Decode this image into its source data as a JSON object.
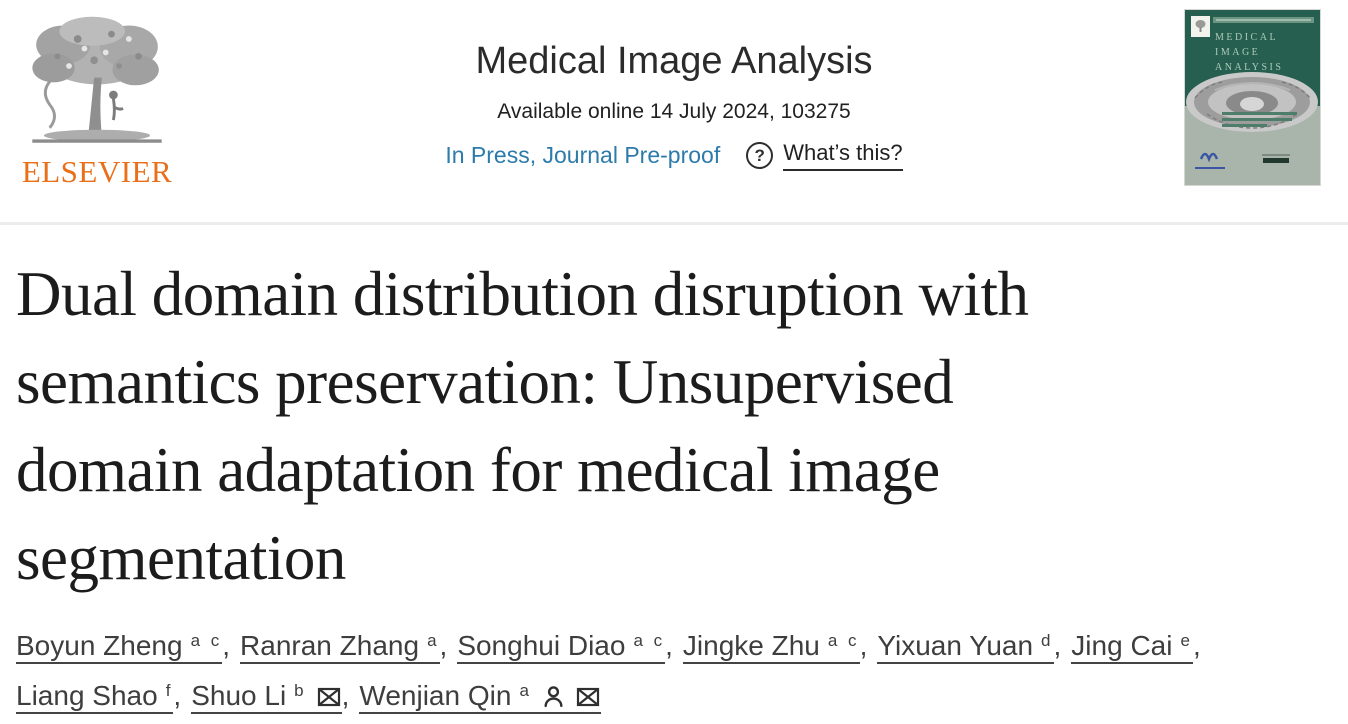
{
  "header": {
    "publisher_wordmark": "ELSEVIER",
    "journal_title": "Medical Image Analysis",
    "availability": "Available online 14 July 2024, 103275",
    "status_link": "In Press, Journal Pre-proof",
    "question_icon": "?",
    "whats_this_label": "What’s this?",
    "accent_orange": "#E8701A",
    "link_teal": "#2C7BAB"
  },
  "cover": {
    "journal_lines": [
      "MEDICAL",
      "IMAGE",
      "ANALYSIS"
    ],
    "green": "#265F4F",
    "sage": "#A9B4AB"
  },
  "article": {
    "title": "Dual domain distribution disruption with semantics preservation: Unsupervised domain adaptation for medical image segmentation",
    "title_lines": [
      "Dual domain distribution disruption with",
      "semantics preservation: Unsupervised",
      "domain adaptation for medical image",
      "segmentation"
    ]
  },
  "authors": {
    "list": [
      {
        "name": "Boyun Zheng",
        "sup": "a c",
        "icons": [],
        "trailing": ","
      },
      {
        "name": "Ranran Zhang",
        "sup": "a",
        "icons": [],
        "trailing": ","
      },
      {
        "name": "Songhui Diao",
        "sup": "a c",
        "icons": [],
        "trailing": ","
      },
      {
        "name": "Jingke Zhu",
        "sup": "a c",
        "icons": [],
        "trailing": ","
      },
      {
        "name": "Yixuan Yuan",
        "sup": "d",
        "icons": [],
        "trailing": ","
      },
      {
        "name": "Jing Cai",
        "sup": "e",
        "icons": [],
        "trailing": ",",
        "newline_after": true
      },
      {
        "name": "Liang Shao",
        "sup": "f",
        "icons": [],
        "trailing": ","
      },
      {
        "name": "Shuo Li",
        "sup": "b",
        "icons": [
          "email"
        ],
        "trailing": ","
      },
      {
        "name": "Wenjian Qin",
        "sup": "a",
        "icons": [
          "person",
          "email"
        ],
        "trailing": ""
      }
    ]
  }
}
